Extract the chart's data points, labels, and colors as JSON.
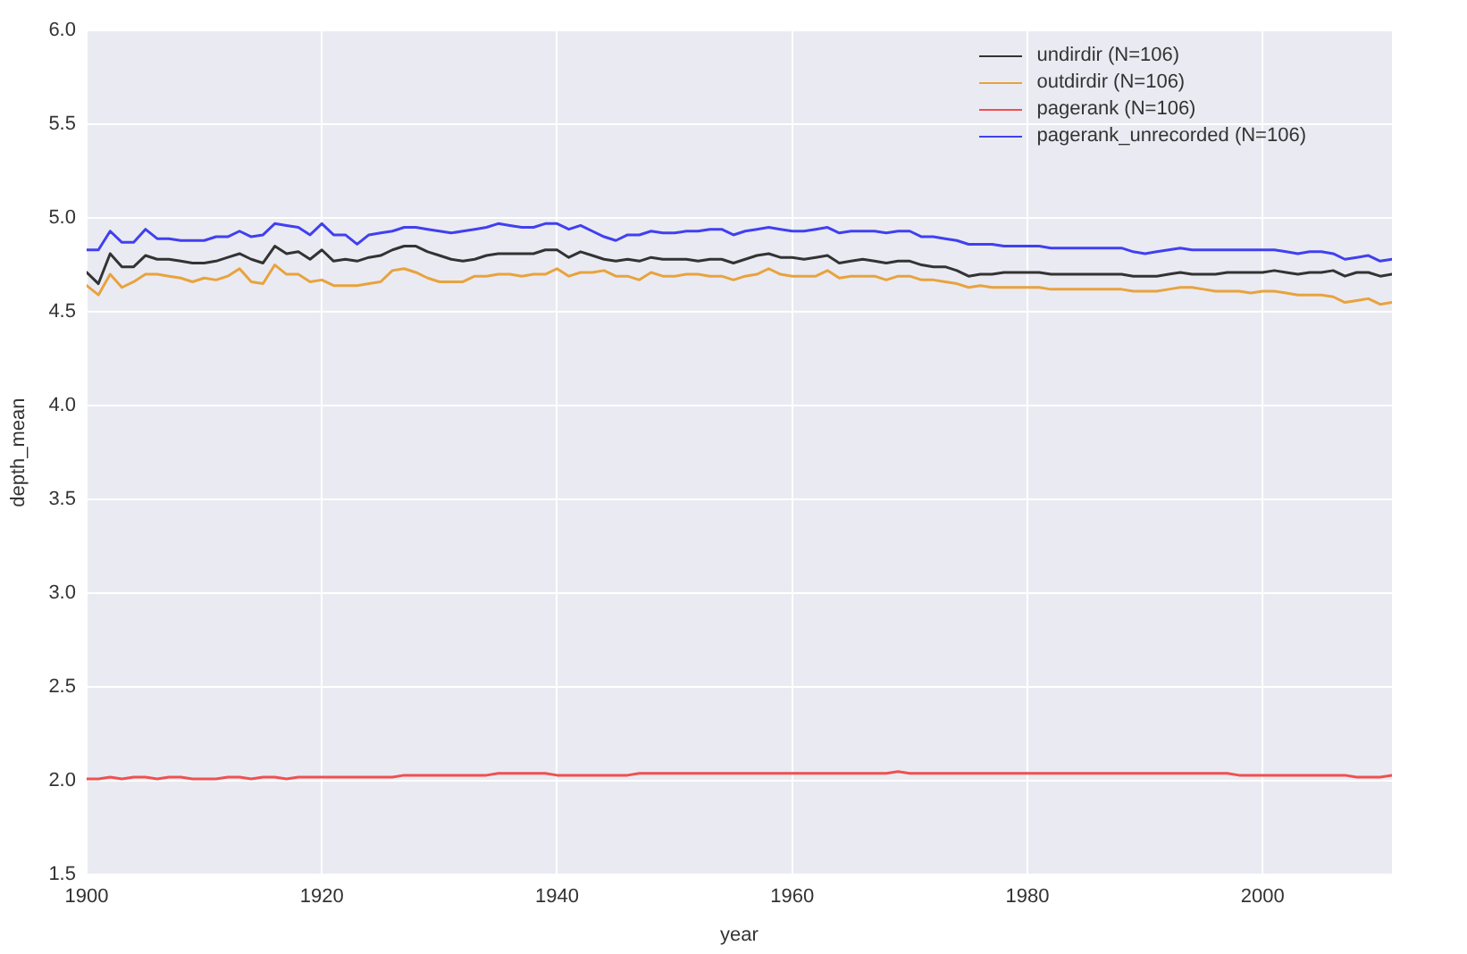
{
  "chart_data": {
    "type": "line",
    "xlabel": "year",
    "ylabel": "depth_mean",
    "x": [
      1900,
      1901,
      1902,
      1903,
      1904,
      1905,
      1906,
      1907,
      1908,
      1909,
      1910,
      1911,
      1912,
      1913,
      1914,
      1915,
      1916,
      1917,
      1918,
      1919,
      1920,
      1921,
      1922,
      1923,
      1924,
      1925,
      1926,
      1927,
      1928,
      1929,
      1930,
      1931,
      1932,
      1933,
      1934,
      1935,
      1936,
      1937,
      1938,
      1939,
      1940,
      1941,
      1942,
      1943,
      1944,
      1945,
      1946,
      1947,
      1948,
      1949,
      1950,
      1951,
      1952,
      1953,
      1954,
      1955,
      1956,
      1957,
      1958,
      1959,
      1960,
      1961,
      1962,
      1963,
      1964,
      1965,
      1966,
      1967,
      1968,
      1969,
      1970,
      1971,
      1972,
      1973,
      1974,
      1975,
      1976,
      1977,
      1978,
      1979,
      1980,
      1981,
      1982,
      1983,
      1984,
      1985,
      1986,
      1987,
      1988,
      1989,
      1990,
      1991,
      1992,
      1993,
      1994,
      1995,
      1996,
      1997,
      1998,
      1999,
      2000,
      2001,
      2002,
      2003,
      2004,
      2005,
      2006,
      2007,
      2008,
      2009,
      2010,
      2011
    ],
    "series": [
      {
        "name": "undirdir (N=106)",
        "color": "#333333",
        "values": [
          4.71,
          4.65,
          4.81,
          4.74,
          4.74,
          4.8,
          4.78,
          4.78,
          4.77,
          4.76,
          4.76,
          4.77,
          4.79,
          4.81,
          4.78,
          4.76,
          4.85,
          4.81,
          4.82,
          4.78,
          4.83,
          4.77,
          4.78,
          4.77,
          4.79,
          4.8,
          4.83,
          4.85,
          4.85,
          4.82,
          4.8,
          4.78,
          4.77,
          4.78,
          4.8,
          4.81,
          4.81,
          4.81,
          4.81,
          4.83,
          4.83,
          4.79,
          4.82,
          4.8,
          4.78,
          4.77,
          4.78,
          4.77,
          4.79,
          4.78,
          4.78,
          4.78,
          4.77,
          4.78,
          4.78,
          4.76,
          4.78,
          4.8,
          4.81,
          4.79,
          4.79,
          4.78,
          4.79,
          4.8,
          4.76,
          4.77,
          4.78,
          4.77,
          4.76,
          4.77,
          4.77,
          4.75,
          4.74,
          4.74,
          4.72,
          4.69,
          4.7,
          4.7,
          4.71,
          4.71,
          4.71,
          4.71,
          4.7,
          4.7,
          4.7,
          4.7,
          4.7,
          4.7,
          4.7,
          4.69,
          4.69,
          4.69,
          4.7,
          4.71,
          4.7,
          4.7,
          4.7,
          4.71,
          4.71,
          4.71,
          4.71,
          4.72,
          4.71,
          4.7,
          4.71,
          4.71,
          4.72,
          4.69,
          4.71,
          4.71,
          4.69,
          4.7
        ]
      },
      {
        "name": "outdirdir (N=106)",
        "color": "#e8a33d",
        "values": [
          4.64,
          4.59,
          4.7,
          4.63,
          4.66,
          4.7,
          4.7,
          4.69,
          4.68,
          4.66,
          4.68,
          4.67,
          4.69,
          4.73,
          4.66,
          4.65,
          4.75,
          4.7,
          4.7,
          4.66,
          4.67,
          4.64,
          4.64,
          4.64,
          4.65,
          4.66,
          4.72,
          4.73,
          4.71,
          4.68,
          4.66,
          4.66,
          4.66,
          4.69,
          4.69,
          4.7,
          4.7,
          4.69,
          4.7,
          4.7,
          4.73,
          4.69,
          4.71,
          4.71,
          4.72,
          4.69,
          4.69,
          4.67,
          4.71,
          4.69,
          4.69,
          4.7,
          4.7,
          4.69,
          4.69,
          4.67,
          4.69,
          4.7,
          4.73,
          4.7,
          4.69,
          4.69,
          4.69,
          4.72,
          4.68,
          4.69,
          4.69,
          4.69,
          4.67,
          4.69,
          4.69,
          4.67,
          4.67,
          4.66,
          4.65,
          4.63,
          4.64,
          4.63,
          4.63,
          4.63,
          4.63,
          4.63,
          4.62,
          4.62,
          4.62,
          4.62,
          4.62,
          4.62,
          4.62,
          4.61,
          4.61,
          4.61,
          4.62,
          4.63,
          4.63,
          4.62,
          4.61,
          4.61,
          4.61,
          4.6,
          4.61,
          4.61,
          4.6,
          4.59,
          4.59,
          4.59,
          4.58,
          4.55,
          4.56,
          4.57,
          4.54,
          4.55
        ]
      },
      {
        "name": "pagerank (N=106)",
        "color": "#f05050",
        "values": [
          2.01,
          2.01,
          2.02,
          2.01,
          2.02,
          2.02,
          2.01,
          2.02,
          2.02,
          2.01,
          2.01,
          2.01,
          2.02,
          2.02,
          2.01,
          2.02,
          2.02,
          2.01,
          2.02,
          2.02,
          2.02,
          2.02,
          2.02,
          2.02,
          2.02,
          2.02,
          2.02,
          2.03,
          2.03,
          2.03,
          2.03,
          2.03,
          2.03,
          2.03,
          2.03,
          2.04,
          2.04,
          2.04,
          2.04,
          2.04,
          2.03,
          2.03,
          2.03,
          2.03,
          2.03,
          2.03,
          2.03,
          2.04,
          2.04,
          2.04,
          2.04,
          2.04,
          2.04,
          2.04,
          2.04,
          2.04,
          2.04,
          2.04,
          2.04,
          2.04,
          2.04,
          2.04,
          2.04,
          2.04,
          2.04,
          2.04,
          2.04,
          2.04,
          2.04,
          2.05,
          2.04,
          2.04,
          2.04,
          2.04,
          2.04,
          2.04,
          2.04,
          2.04,
          2.04,
          2.04,
          2.04,
          2.04,
          2.04,
          2.04,
          2.04,
          2.04,
          2.04,
          2.04,
          2.04,
          2.04,
          2.04,
          2.04,
          2.04,
          2.04,
          2.04,
          2.04,
          2.04,
          2.04,
          2.03,
          2.03,
          2.03,
          2.03,
          2.03,
          2.03,
          2.03,
          2.03,
          2.03,
          2.03,
          2.02,
          2.02,
          2.02,
          2.03
        ]
      },
      {
        "name": "pagerank_unrecorded (N=106)",
        "color": "#4040f0",
        "values": [
          4.83,
          4.83,
          4.93,
          4.87,
          4.87,
          4.94,
          4.89,
          4.89,
          4.88,
          4.88,
          4.88,
          4.9,
          4.9,
          4.93,
          4.9,
          4.91,
          4.97,
          4.96,
          4.95,
          4.91,
          4.97,
          4.91,
          4.91,
          4.86,
          4.91,
          4.92,
          4.93,
          4.95,
          4.95,
          4.94,
          4.93,
          4.92,
          4.93,
          4.94,
          4.95,
          4.97,
          4.96,
          4.95,
          4.95,
          4.97,
          4.97,
          4.94,
          4.96,
          4.93,
          4.9,
          4.88,
          4.91,
          4.91,
          4.93,
          4.92,
          4.92,
          4.93,
          4.93,
          4.94,
          4.94,
          4.91,
          4.93,
          4.94,
          4.95,
          4.94,
          4.93,
          4.93,
          4.94,
          4.95,
          4.92,
          4.93,
          4.93,
          4.93,
          4.92,
          4.93,
          4.93,
          4.9,
          4.9,
          4.89,
          4.88,
          4.86,
          4.86,
          4.86,
          4.85,
          4.85,
          4.85,
          4.85,
          4.84,
          4.84,
          4.84,
          4.84,
          4.84,
          4.84,
          4.84,
          4.82,
          4.81,
          4.82,
          4.83,
          4.84,
          4.83,
          4.83,
          4.83,
          4.83,
          4.83,
          4.83,
          4.83,
          4.83,
          4.82,
          4.81,
          4.82,
          4.82,
          4.81,
          4.78,
          4.79,
          4.8,
          4.77,
          4.78
        ]
      }
    ],
    "xlim": [
      1900,
      2011
    ],
    "xticks": [
      1900,
      1920,
      1940,
      1960,
      1980,
      2000
    ],
    "ylim": [
      1.5,
      6.0
    ],
    "yticks": [
      {
        "value": 1.5,
        "label": "1.5"
      },
      {
        "value": 2,
        "label": "2.0"
      },
      {
        "value": 2.5,
        "label": "2.5"
      },
      {
        "value": 3,
        "label": "3.0"
      },
      {
        "value": 3.5,
        "label": "3.5"
      },
      {
        "value": 4,
        "label": "4.0"
      },
      {
        "value": 4.5,
        "label": "4.5"
      },
      {
        "value": 5,
        "label": "5.0"
      },
      {
        "value": 5.5,
        "label": "5.5"
      },
      {
        "value": 6,
        "label": "6.0"
      }
    ],
    "grid": true,
    "legend": "top right"
  }
}
